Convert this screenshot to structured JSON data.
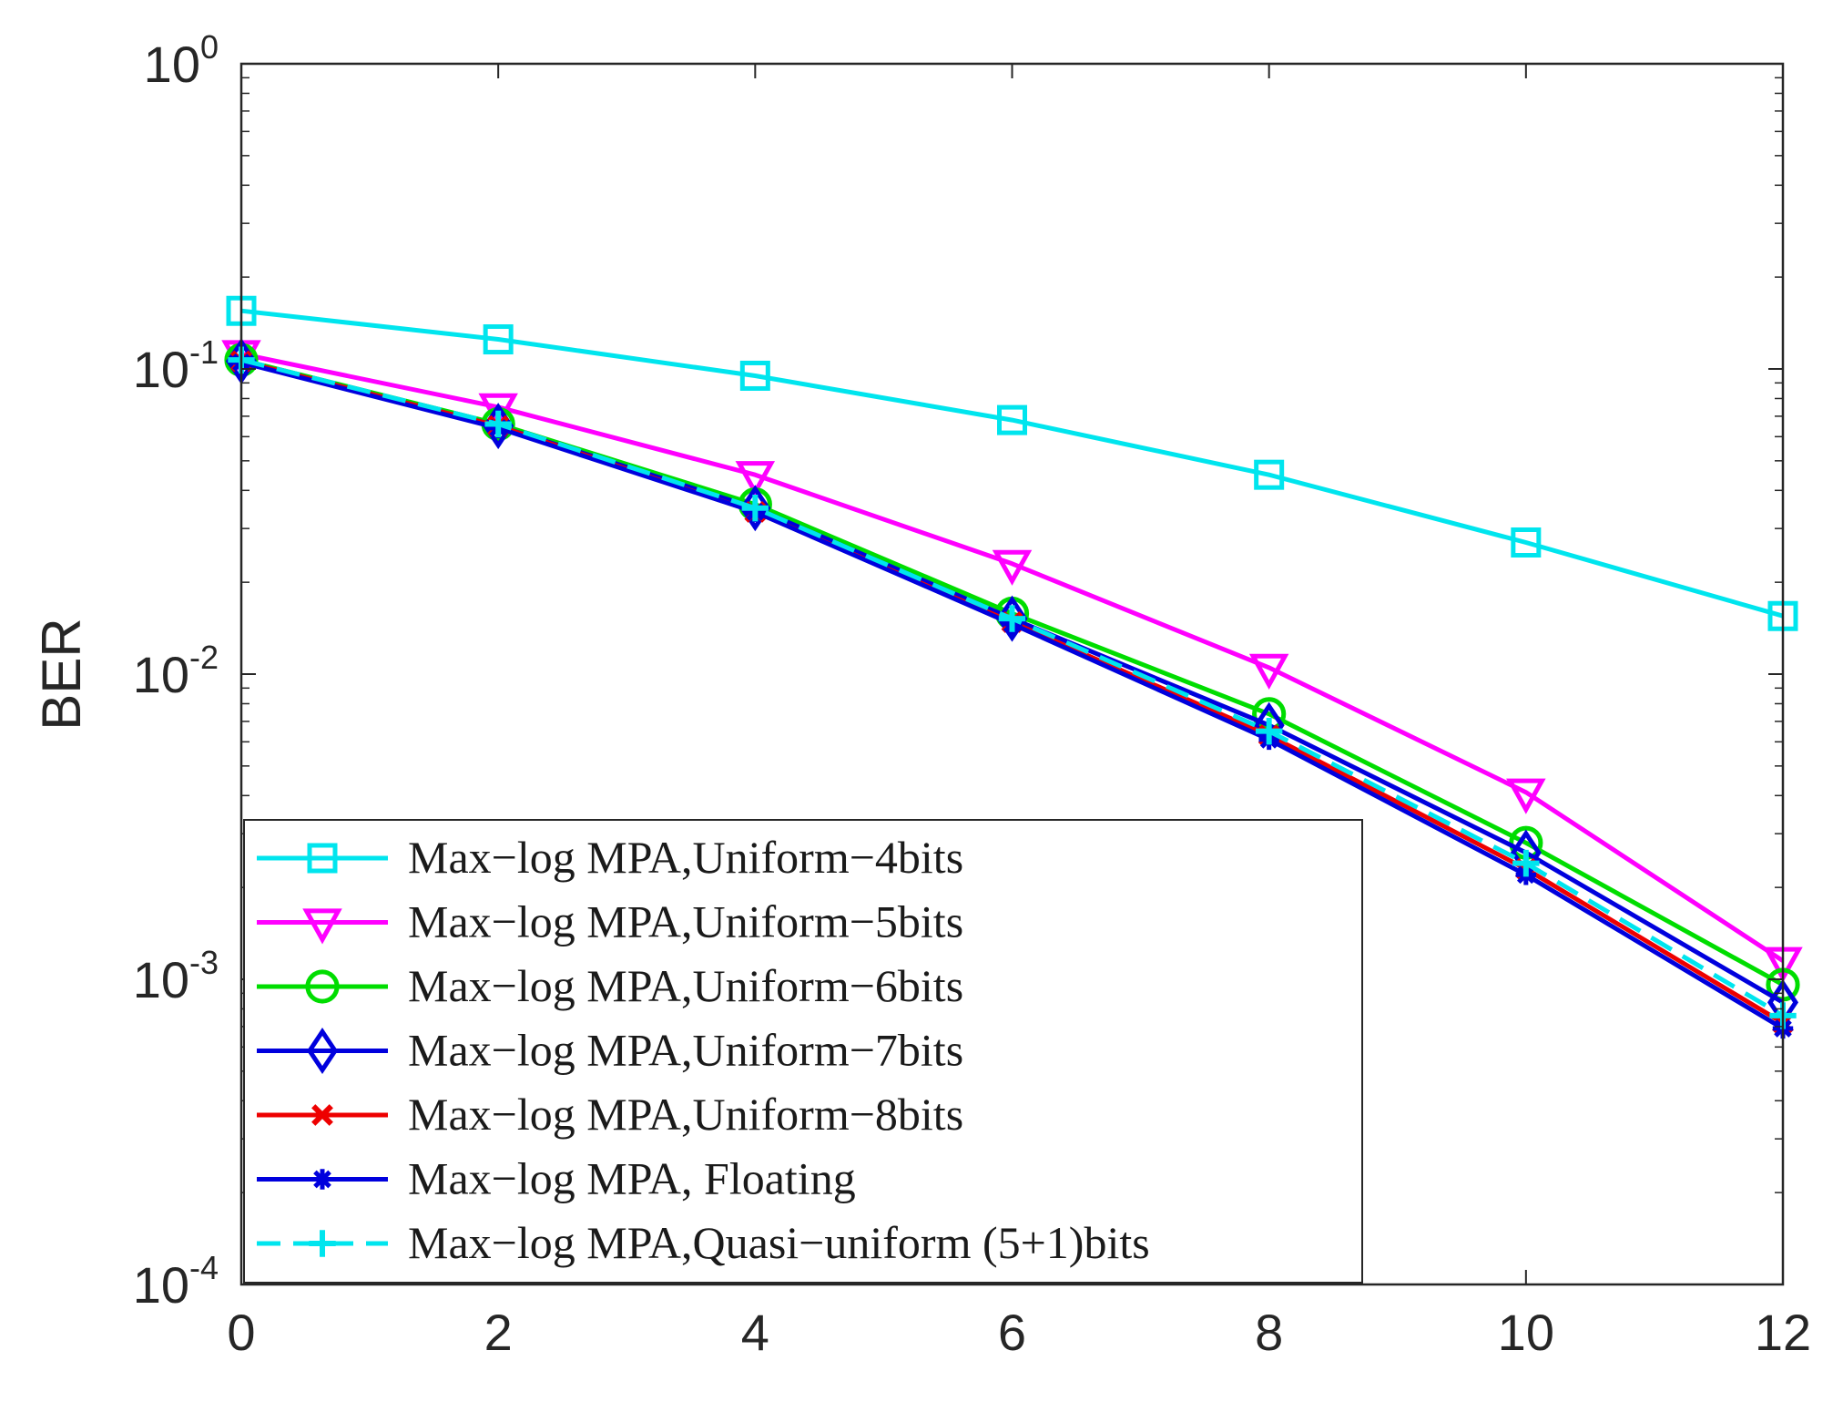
{
  "chart_data": {
    "type": "line",
    "title": "",
    "xlabel": "",
    "ylabel": "BER",
    "yscale": "log",
    "xlim": [
      0,
      12
    ],
    "ylim": [
      0.0001,
      1
    ],
    "grid": false,
    "legend_position": "bottom-left",
    "x_ticks": [
      {
        "value": 0,
        "label": "0"
      },
      {
        "value": 2,
        "label": "2"
      },
      {
        "value": 4,
        "label": "4"
      },
      {
        "value": 6,
        "label": "6"
      },
      {
        "value": 8,
        "label": "8"
      },
      {
        "value": 10,
        "label": "10"
      },
      {
        "value": 12,
        "label": "12"
      }
    ],
    "y_ticks": [
      {
        "value": 1,
        "base": "10",
        "exp": "0"
      },
      {
        "value": 0.1,
        "base": "10",
        "exp": "-1"
      },
      {
        "value": 0.01,
        "base": "10",
        "exp": "-2"
      },
      {
        "value": 0.001,
        "base": "10",
        "exp": "-3"
      },
      {
        "value": 0.0001,
        "base": "10",
        "exp": "-4"
      }
    ],
    "x": [
      0,
      2,
      4,
      6,
      8,
      10,
      12
    ],
    "series": [
      {
        "name": "Max−log MPA,Uniform−4bits",
        "color": "#00e5ee",
        "marker": "square",
        "dash": "solid",
        "values": [
          0.155,
          0.125,
          0.095,
          0.068,
          0.045,
          0.027,
          0.0155
        ]
      },
      {
        "name": "Max−log MPA,Uniform−5bits",
        "color": "#ff00ff",
        "marker": "triangle-down",
        "dash": "solid",
        "values": [
          0.112,
          0.075,
          0.045,
          0.023,
          0.0105,
          0.0041,
          0.00115
        ]
      },
      {
        "name": "Max−log MPA,Uniform−6bits",
        "color": "#00dd00",
        "marker": "circle",
        "dash": "solid",
        "values": [
          0.107,
          0.066,
          0.036,
          0.0158,
          0.0074,
          0.0028,
          0.00096
        ]
      },
      {
        "name": "Max−log MPA,Uniform−7bits",
        "color": "#0000dd",
        "marker": "diamond",
        "dash": "solid",
        "values": [
          0.106,
          0.065,
          0.035,
          0.0152,
          0.0068,
          0.0026,
          0.00084
        ]
      },
      {
        "name": "Max−log MPA,Uniform−8bits",
        "color": "#ee0000",
        "marker": "x",
        "dash": "solid",
        "values": [
          0.106,
          0.065,
          0.034,
          0.0148,
          0.0063,
          0.0023,
          0.00072
        ]
      },
      {
        "name": "Max−log MPA, Floating",
        "color": "#0000dd",
        "marker": "asterisk",
        "dash": "solid",
        "values": [
          0.105,
          0.064,
          0.034,
          0.0146,
          0.0061,
          0.0022,
          0.00069
        ]
      },
      {
        "name": "Max−log MPA,Quasi−uniform (5+1)bits",
        "color": "#00e5ee",
        "marker": "plus",
        "dash": "dashed",
        "values": [
          0.107,
          0.066,
          0.035,
          0.0152,
          0.0065,
          0.0024,
          0.00076
        ]
      }
    ]
  }
}
